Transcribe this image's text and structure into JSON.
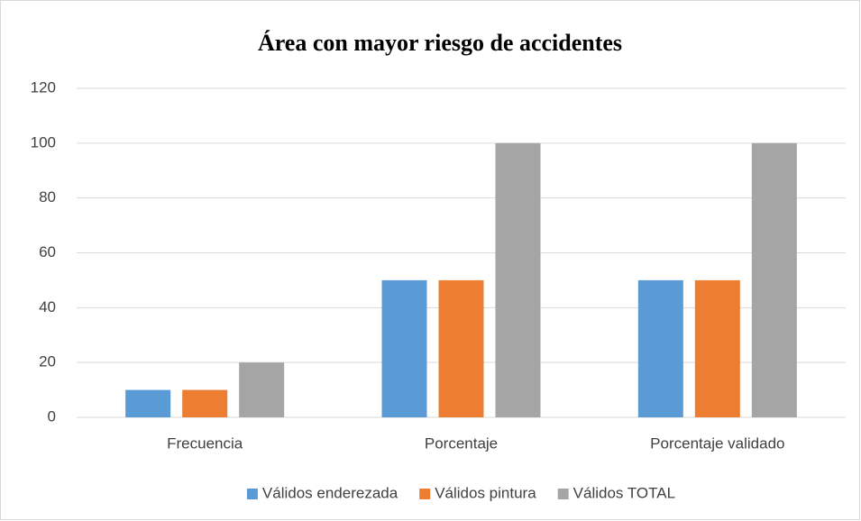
{
  "chart_data": {
    "type": "bar",
    "title": "Área con mayor riesgo de accidentes",
    "categories": [
      "Frecuencia",
      "Porcentaje",
      "Porcentaje validado"
    ],
    "series": [
      {
        "name": "Válidos enderezada",
        "color": "#5b9bd5",
        "values": [
          10,
          50,
          50
        ]
      },
      {
        "name": "Válidos pintura",
        "color": "#ed7d31",
        "values": [
          10,
          50,
          50
        ]
      },
      {
        "name": "Válidos TOTAL",
        "color": "#a5a5a5",
        "values": [
          20,
          100,
          100
        ]
      }
    ],
    "ylim": [
      0,
      120
    ],
    "yticks": [
      0,
      20,
      40,
      60,
      80,
      100,
      120
    ],
    "grid": true,
    "legend": "bottom"
  }
}
